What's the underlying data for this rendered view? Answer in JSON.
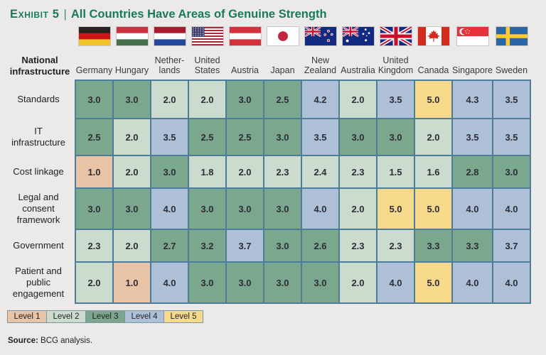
{
  "title": {
    "exhibit": "Exhibit 5",
    "separator": "|",
    "text": "All Countries Have Areas of Genuine Strength"
  },
  "table": {
    "row_header": "National\ninfrastructure",
    "columns": [
      {
        "label": "Germany",
        "flag": "germany"
      },
      {
        "label": "Hungary",
        "flag": "hungary"
      },
      {
        "label": "Nether-\nlands",
        "flag": "netherlands"
      },
      {
        "label": "United\nStates",
        "flag": "usa"
      },
      {
        "label": "Austria",
        "flag": "austria"
      },
      {
        "label": "Japan",
        "flag": "japan"
      },
      {
        "label": "New\nZealand",
        "flag": "newzealand"
      },
      {
        "label": "Australia",
        "flag": "australia"
      },
      {
        "label": "United\nKingdom",
        "flag": "uk"
      },
      {
        "label": "Canada",
        "flag": "canada"
      },
      {
        "label": "Singapore",
        "flag": "singapore"
      },
      {
        "label": "Sweden",
        "flag": "sweden"
      }
    ],
    "rows": [
      {
        "label": "Standards",
        "values": [
          "3.0",
          "3.0",
          "2.0",
          "2.0",
          "3.0",
          "2.5",
          "4.2",
          "2.0",
          "3.5",
          "5.0",
          "4.3",
          "3.5"
        ],
        "levels": [
          3,
          3,
          2,
          2,
          3,
          3,
          4,
          2,
          4,
          5,
          4,
          4
        ]
      },
      {
        "label": "IT\ninfrastructure",
        "values": [
          "2.5",
          "2.0",
          "3.5",
          "2.5",
          "2.5",
          "3.0",
          "3.5",
          "3.0",
          "3.0",
          "2.0",
          "3.5",
          "3.5"
        ],
        "levels": [
          3,
          2,
          4,
          3,
          3,
          3,
          4,
          3,
          3,
          2,
          4,
          4
        ]
      },
      {
        "label": "Cost linkage",
        "values": [
          "1.0",
          "2.0",
          "3.0",
          "1.8",
          "2.0",
          "2.3",
          "2.4",
          "2.3",
          "1.5",
          "1.6",
          "2.8",
          "3.0"
        ],
        "levels": [
          1,
          2,
          3,
          2,
          2,
          2,
          2,
          2,
          2,
          2,
          3,
          3
        ]
      },
      {
        "label": "Legal and\nconsent\nframework",
        "values": [
          "3.0",
          "3.0",
          "4.0",
          "3.0",
          "3.0",
          "3.0",
          "4.0",
          "2.0",
          "5.0",
          "5.0",
          "4.0",
          "4.0"
        ],
        "levels": [
          3,
          3,
          4,
          3,
          3,
          3,
          4,
          2,
          5,
          5,
          4,
          4
        ]
      },
      {
        "label": "Government",
        "values": [
          "2.3",
          "2.0",
          "2.7",
          "3.2",
          "3.7",
          "3.0",
          "2.6",
          "2.3",
          "2.3",
          "3.3",
          "3.3",
          "3.7"
        ],
        "levels": [
          2,
          2,
          3,
          3,
          4,
          3,
          3,
          2,
          2,
          3,
          3,
          4
        ]
      },
      {
        "label": "Patient and\npublic\nengagement",
        "values": [
          "2.0",
          "1.0",
          "4.0",
          "3.0",
          "3.0",
          "3.0",
          "3.0",
          "2.0",
          "4.0",
          "5.0",
          "4.0",
          "4.0"
        ],
        "levels": [
          2,
          1,
          4,
          3,
          3,
          3,
          3,
          2,
          4,
          5,
          4,
          4
        ]
      }
    ]
  },
  "legend": {
    "items": [
      {
        "label": "Level 1",
        "level": 1
      },
      {
        "label": "Level 2",
        "level": 2
      },
      {
        "label": "Level 3",
        "level": 3
      },
      {
        "label": "Level 4",
        "level": 4
      },
      {
        "label": "Level 5",
        "level": 5
      }
    ]
  },
  "source": {
    "label": "Source:",
    "text": "BCG analysis."
  },
  "colors": {
    "level1": "#e8c3a6",
    "level2": "#cbdcce",
    "level3": "#7ca78f",
    "level4": "#aec0d8",
    "level5": "#f6d98a",
    "grid_border": "#4c7c96",
    "title_green": "#18795b",
    "background": "#ebeae8"
  }
}
